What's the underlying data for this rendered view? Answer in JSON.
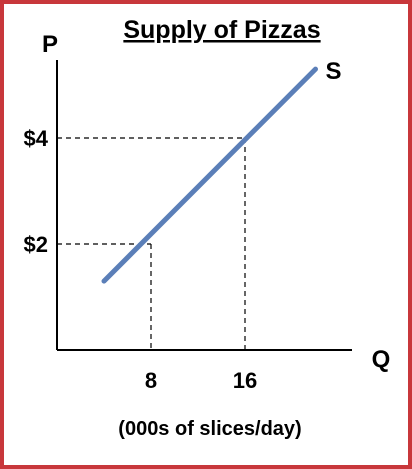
{
  "chart_data": {
    "type": "line",
    "title": "Supply of Pizzas",
    "ylabel": "P",
    "xlabel": "Q",
    "x_unit_note": "(000s of slices/day)",
    "series": [
      {
        "name": "S",
        "x": [
          4,
          22
        ],
        "y": [
          1.3,
          5.3
        ]
      }
    ],
    "highlight_points": [
      {
        "x": 8,
        "y": 2,
        "x_label": "8",
        "y_label": "$2"
      },
      {
        "x": 16,
        "y": 4,
        "x_label": "16",
        "y_label": "$4"
      }
    ],
    "xlim": [
      0,
      24
    ],
    "ylim": [
      0,
      6
    ],
    "grid": false,
    "colors": {
      "line": "#5b7fb8",
      "frame": "#c8373b",
      "axis": "#000000"
    }
  }
}
